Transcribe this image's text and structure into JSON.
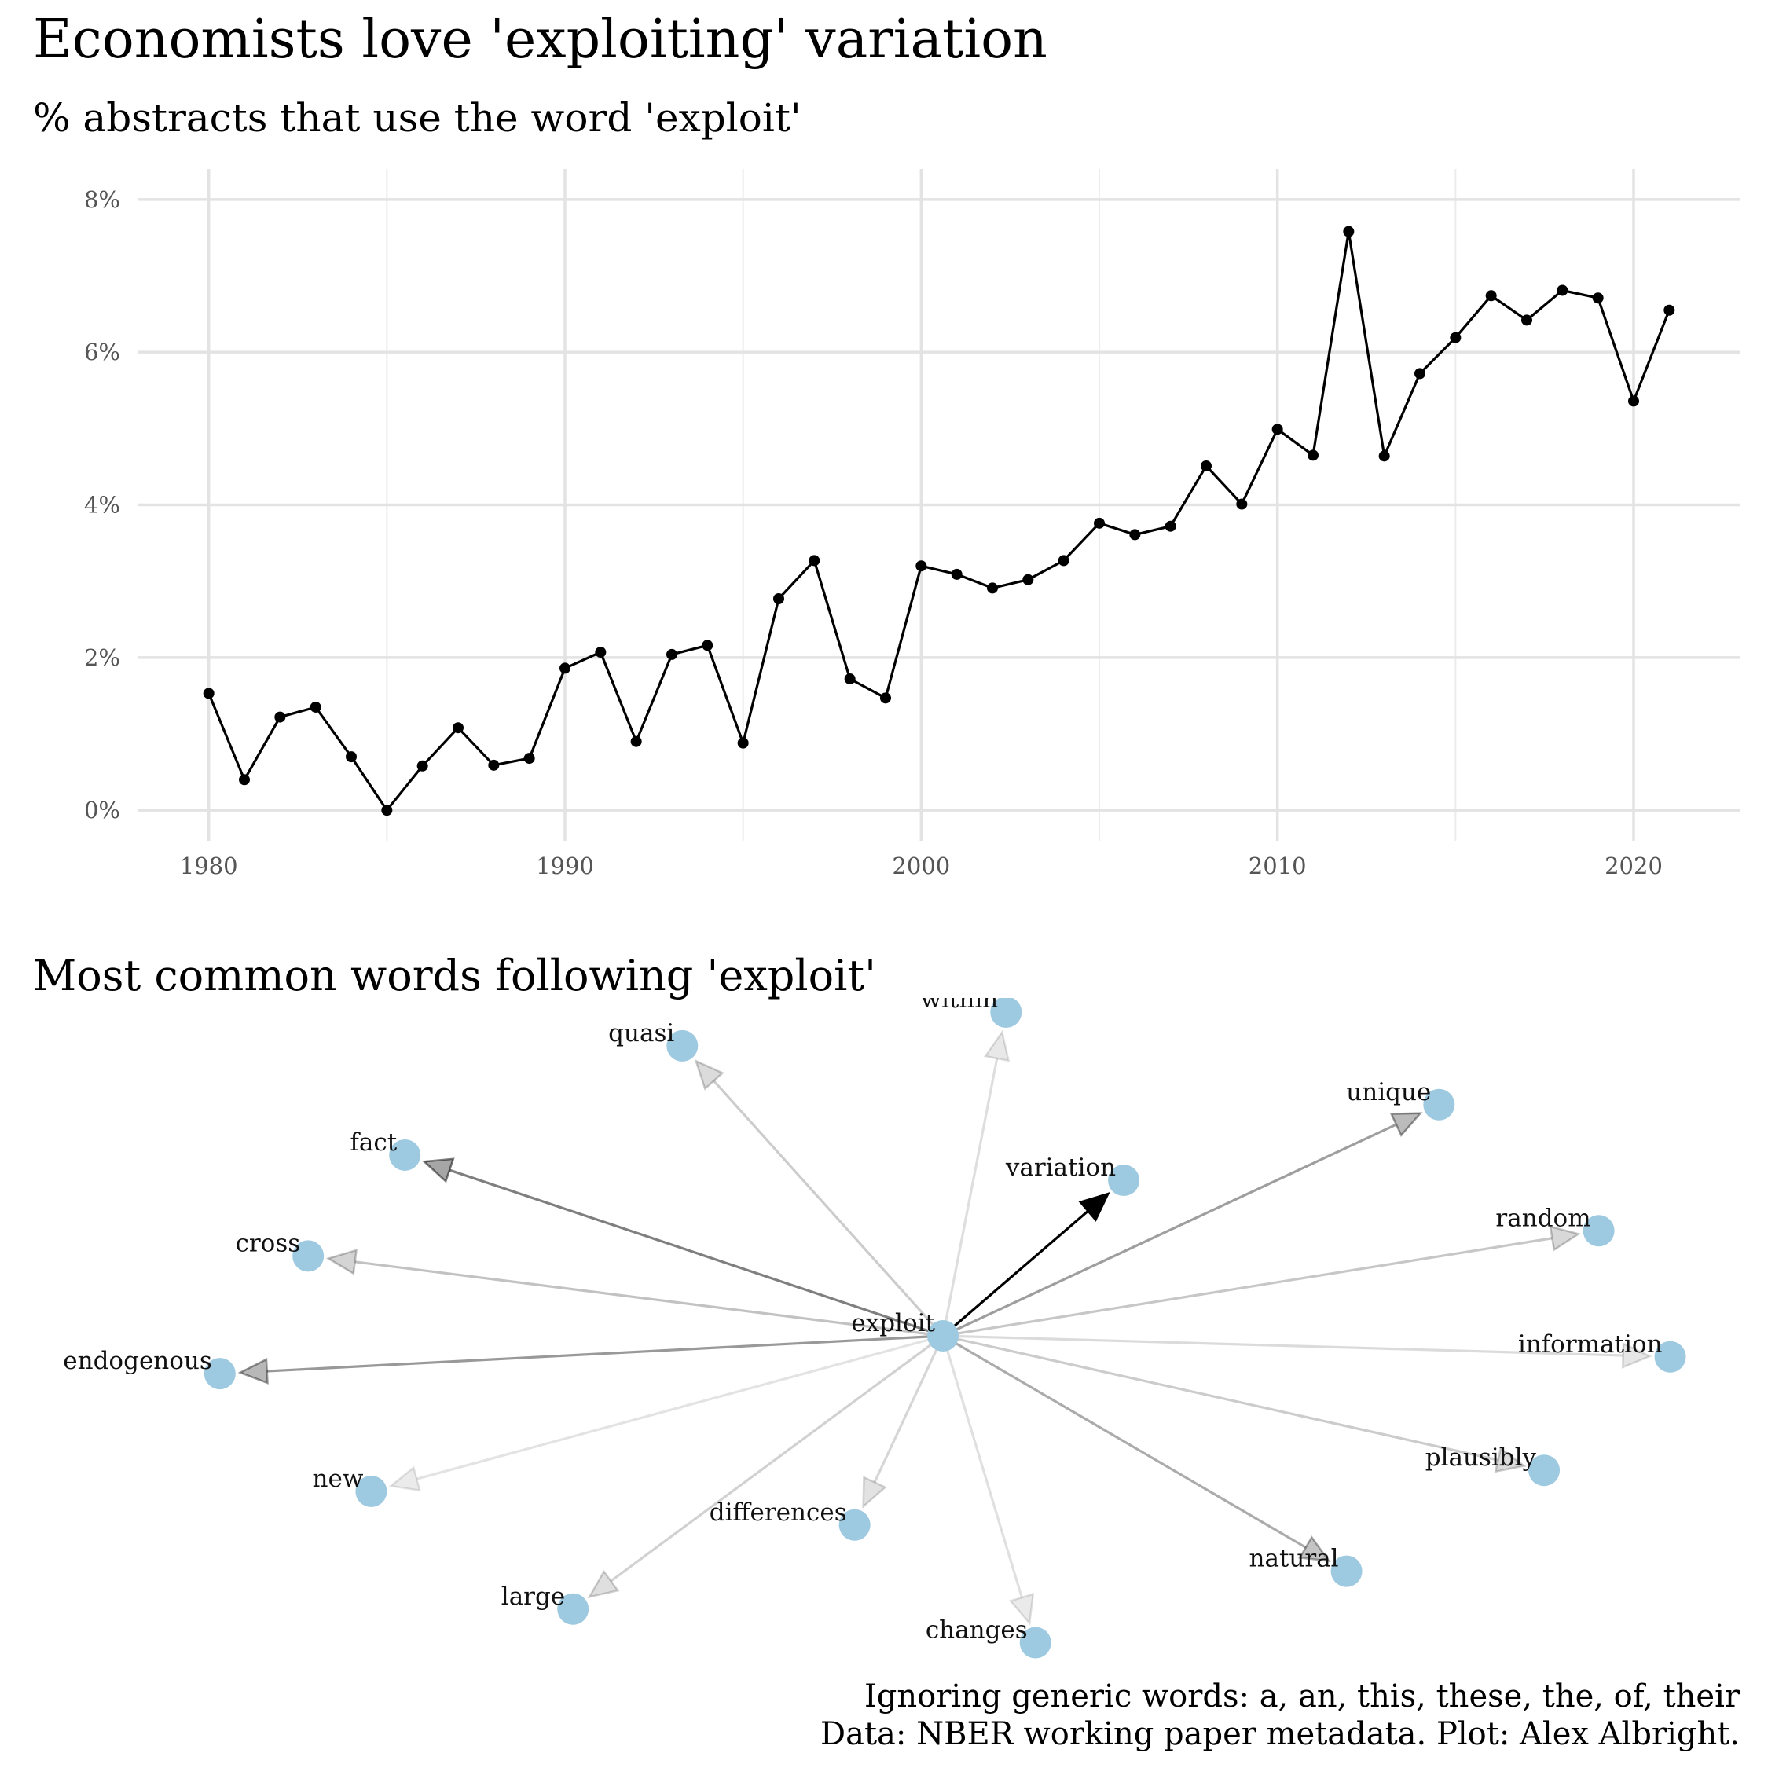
{
  "title": "Economists love 'exploiting' variation",
  "subtitle": "% abstracts that use the word 'exploit'",
  "network_title": "Most common words following 'exploit'",
  "caption": {
    "line1": "Ignoring generic words: a, an, this, these, the, of, their",
    "line2": "Data: NBER working paper metadata. Plot: Alex Albright."
  },
  "chart_data": [
    {
      "type": "line",
      "title": "",
      "xlabel": "",
      "ylabel": "",
      "xlim": [
        1978,
        2023
      ],
      "ylim": [
        -0.4,
        8.4
      ],
      "x_ticks": [
        1980,
        1990,
        2000,
        2010,
        2020
      ],
      "y_ticks": [
        0,
        2,
        4,
        6,
        8
      ],
      "y_tick_labels": [
        "0%",
        "2%",
        "4%",
        "6%",
        "8%"
      ],
      "grid": true,
      "series": [
        {
          "x": [
            1980,
            1981,
            1982,
            1983,
            1984,
            1985,
            1986,
            1987,
            1988,
            1989,
            1990,
            1991,
            1992,
            1993,
            1994,
            1995,
            1996,
            1997,
            1998,
            1999,
            2000,
            2001,
            2002,
            2003,
            2004,
            2005,
            2006,
            2007,
            2008,
            2009,
            2010,
            2011,
            2012,
            2013,
            2014,
            2015,
            2016,
            2017,
            2018,
            2019,
            2020,
            2021
          ],
          "values": [
            1.53,
            0.4,
            1.22,
            1.35,
            0.7,
            0.0,
            0.58,
            1.08,
            0.59,
            0.68,
            1.86,
            2.07,
            0.9,
            2.04,
            2.16,
            0.88,
            2.77,
            3.27,
            1.72,
            1.47,
            3.2,
            3.09,
            2.91,
            3.02,
            3.27,
            3.76,
            3.61,
            3.72,
            4.51,
            4.01,
            4.99,
            4.65,
            7.58,
            4.64,
            5.72,
            6.19,
            6.74,
            6.42,
            6.81,
            6.71,
            5.36,
            6.55
          ]
        }
      ]
    },
    {
      "type": "network",
      "title": "",
      "center": "exploit",
      "nodes": [
        {
          "label": "exploit",
          "x": 0.0,
          "y": 0.0
        },
        {
          "label": "variation",
          "x": 4.3,
          "y": 3.7
        },
        {
          "label": "fact",
          "x": -12.8,
          "y": 4.3
        },
        {
          "label": "endogenous",
          "x": -17.2,
          "y": -0.9
        },
        {
          "label": "unique",
          "x": 11.8,
          "y": 5.5
        },
        {
          "label": "natural",
          "x": 9.6,
          "y": -5.6
        },
        {
          "label": "cross",
          "x": -15.1,
          "y": 1.9
        },
        {
          "label": "random",
          "x": 15.6,
          "y": 2.5
        },
        {
          "label": "quasi",
          "x": -6.2,
          "y": 6.9
        },
        {
          "label": "plausibly",
          "x": 14.3,
          "y": -3.2
        },
        {
          "label": "large",
          "x": -8.8,
          "y": -6.5
        },
        {
          "label": "differences",
          "x": -2.1,
          "y": -4.5
        },
        {
          "label": "information",
          "x": 17.3,
          "y": -0.5
        },
        {
          "label": "within",
          "x": 1.5,
          "y": 7.7
        },
        {
          "label": "changes",
          "x": 2.2,
          "y": -7.3
        },
        {
          "label": "new",
          "x": -13.6,
          "y": -3.7
        }
      ],
      "edges": [
        {
          "from": "exploit",
          "to": "variation",
          "weight": 1.0
        },
        {
          "from": "exploit",
          "to": "fact",
          "weight": 0.5
        },
        {
          "from": "exploit",
          "to": "endogenous",
          "weight": 0.4
        },
        {
          "from": "exploit",
          "to": "unique",
          "weight": 0.38
        },
        {
          "from": "exploit",
          "to": "natural",
          "weight": 0.33
        },
        {
          "from": "exploit",
          "to": "cross",
          "weight": 0.24
        },
        {
          "from": "exploit",
          "to": "random",
          "weight": 0.22
        },
        {
          "from": "exploit",
          "to": "quasi",
          "weight": 0.2
        },
        {
          "from": "exploit",
          "to": "plausibly",
          "weight": 0.2
        },
        {
          "from": "exploit",
          "to": "large",
          "weight": 0.18
        },
        {
          "from": "exploit",
          "to": "differences",
          "weight": 0.16
        },
        {
          "from": "exploit",
          "to": "information",
          "weight": 0.14
        },
        {
          "from": "exploit",
          "to": "within",
          "weight": 0.13
        },
        {
          "from": "exploit",
          "to": "changes",
          "weight": 0.12
        },
        {
          "from": "exploit",
          "to": "new",
          "weight": 0.11
        }
      ],
      "node_color": "#9ecae1",
      "edge_color": "#000000"
    }
  ]
}
